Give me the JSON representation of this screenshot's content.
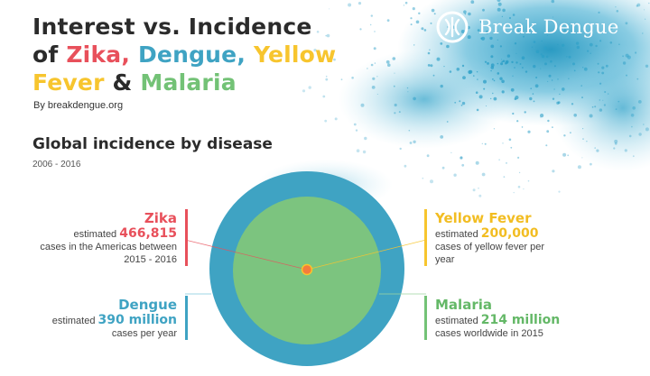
{
  "header": {
    "title_line1": "Interest vs. Incidence",
    "title_of": "of ",
    "title_zika": "Zika,",
    "title_dengue": "Dengue,",
    "title_yellow": "Yellow",
    "title_fever": "Fever",
    "title_amp": " & ",
    "title_malaria": "Malaria",
    "byline": "By breakdengue.org"
  },
  "brand": {
    "name": "Break Dengue",
    "icon": "break-dengue-logo-icon"
  },
  "section": {
    "title": "Global incidence by disease",
    "subtitle": "2006 - 2016"
  },
  "colors": {
    "zika": "#e8505b",
    "dengue": "#3fa3c3",
    "yellow_fever": "#f7c52e",
    "malaria": "#73c276",
    "outer_circle": "#3fa3c3",
    "inner_circle": "#7cc47f",
    "center_dot": "#f47c3c"
  },
  "diseases": {
    "zika": {
      "name": "Zika",
      "prefix": "estimated ",
      "value": "466,815",
      "line2": "cases in the Americas between",
      "line3": "2015 - 2016"
    },
    "dengue": {
      "name": "Dengue",
      "prefix": "estimated ",
      "value": "390 million",
      "line2": "cases per year"
    },
    "yellow_fever": {
      "name": "Yellow Fever",
      "prefix": "estimated ",
      "value": "200,000",
      "line2": "cases of yellow fever per",
      "line3": "year"
    },
    "malaria": {
      "name": "Malaria",
      "prefix": "estimated ",
      "value": "214 million",
      "line2": "cases worldwide in 2015"
    }
  }
}
